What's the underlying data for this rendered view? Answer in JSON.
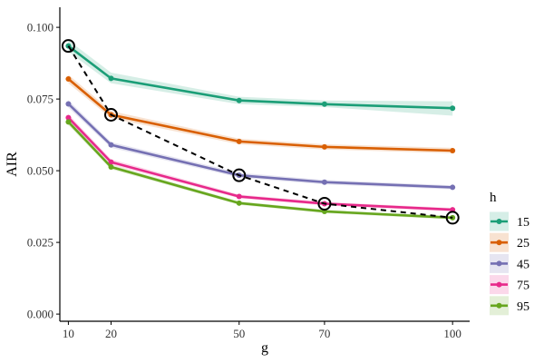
{
  "chart_data": {
    "type": "line",
    "xlabel": "g",
    "ylabel": "AIR",
    "x": [
      10,
      20,
      50,
      70,
      100
    ],
    "x_ticks": [
      "10",
      "20",
      "50",
      "70",
      "100"
    ],
    "y_ticks": [
      "0.000",
      "0.025",
      "0.050",
      "0.075",
      "0.100"
    ],
    "xlim": [
      8,
      104
    ],
    "ylim": [
      -0.0025,
      0.107
    ],
    "grid": false,
    "legend": {
      "title": "h",
      "placement": "right"
    },
    "series": [
      {
        "name": "15",
        "color": "#1B9E77",
        "values": [
          0.0935,
          0.0822,
          0.0745,
          0.0732,
          0.0718
        ],
        "band_low": [
          0.0915,
          0.0805,
          0.0732,
          0.0722,
          0.0692
        ],
        "band_high": [
          0.0955,
          0.0842,
          0.0758,
          0.0745,
          0.0742
        ]
      },
      {
        "name": "25",
        "color": "#D95F02",
        "values": [
          0.082,
          0.0695,
          0.0602,
          0.0583,
          0.057
        ],
        "band_low": [
          0.0805,
          0.0683,
          0.0592,
          0.0574,
          0.0561
        ],
        "band_high": [
          0.0835,
          0.0708,
          0.0612,
          0.0592,
          0.058
        ]
      },
      {
        "name": "45",
        "color": "#7570B3",
        "values": [
          0.0733,
          0.059,
          0.0484,
          0.046,
          0.0442
        ],
        "band_low": [
          0.072,
          0.058,
          0.0476,
          0.0452,
          0.0435
        ],
        "band_high": [
          0.0746,
          0.06,
          0.0493,
          0.0468,
          0.0449
        ]
      },
      {
        "name": "75",
        "color": "#E7298A",
        "values": [
          0.0685,
          0.053,
          0.041,
          0.0385,
          0.0364
        ],
        "band_low": [
          0.0673,
          0.0521,
          0.0404,
          0.0379,
          0.0358
        ],
        "band_high": [
          0.0697,
          0.054,
          0.0417,
          0.0391,
          0.037
        ]
      },
      {
        "name": "95",
        "color": "#66A61E",
        "values": [
          0.067,
          0.0513,
          0.0387,
          0.0358,
          0.0336
        ],
        "band_low": [
          0.0659,
          0.0505,
          0.0381,
          0.0352,
          0.033
        ],
        "band_high": [
          0.0681,
          0.0521,
          0.0393,
          0.0364,
          0.0342
        ]
      }
    ],
    "frontier": {
      "style": "dashed",
      "color": "#000000",
      "values": [
        0.0935,
        0.0695,
        0.0484,
        0.0385,
        0.0336
      ]
    }
  }
}
